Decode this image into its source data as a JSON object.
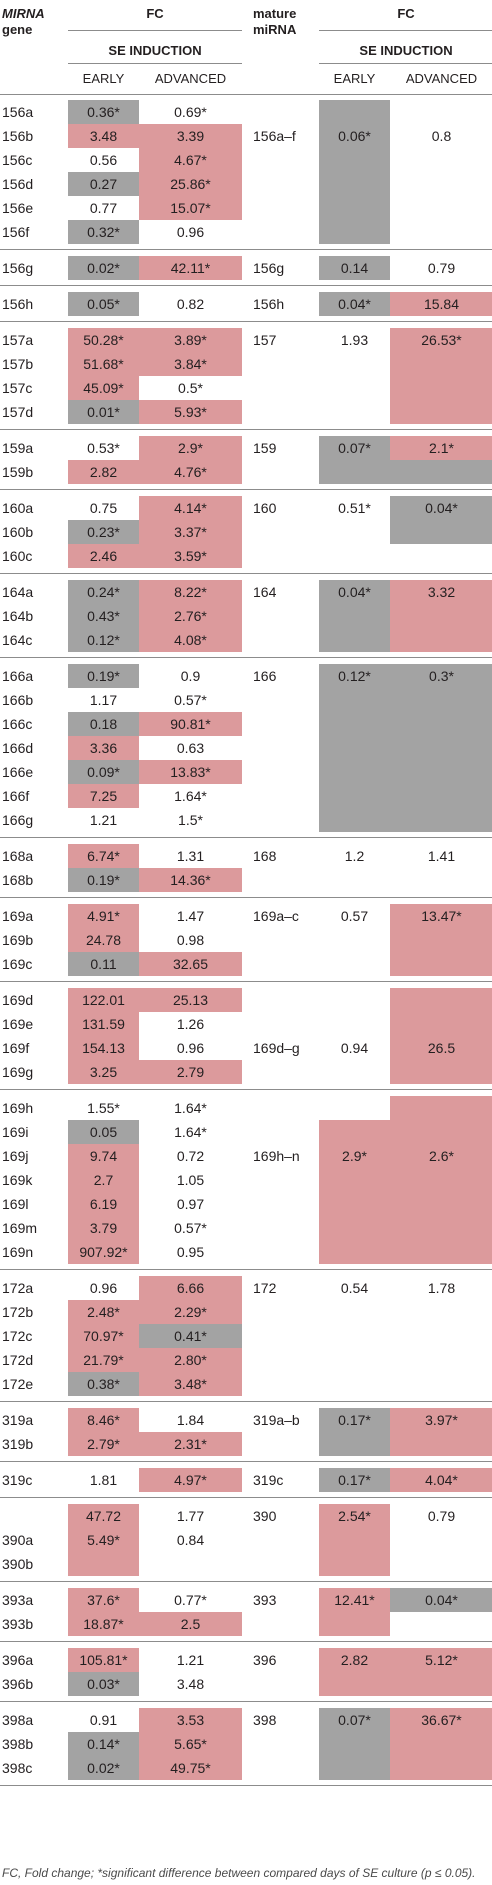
{
  "header": {
    "mirna_gene_1": "MIRNA",
    "mirna_gene_2": "gene",
    "fc_left": "FC",
    "mature_1": "mature",
    "mature_2": "miRNA",
    "fc_right": "FC",
    "se_left": "SE INDUCTION",
    "se_right": "SE INDUCTION",
    "early_left": "EARLY",
    "advanced_left": "ADVANCED",
    "early_right": "EARLY",
    "advanced_right": "ADVANCED"
  },
  "colors": {
    "up": "#dc9a9c",
    "down": "#a3a3a3"
  },
  "groups": [
    {
      "rows": [
        [
          "156a",
          "0.36*",
          "g",
          "0.69*",
          ""
        ],
        [
          "156b",
          "3.48",
          "r",
          "3.39",
          "r"
        ],
        [
          "156c",
          "0.56",
          "",
          "4.67*",
          "r"
        ],
        [
          "156d",
          "0.27",
          "g",
          "25.86*",
          "r"
        ],
        [
          "156e",
          "0.77",
          "",
          "15.07*",
          "r"
        ],
        [
          "156f",
          "0.32*",
          "g",
          "0.96",
          ""
        ]
      ],
      "mature": {
        "name": "156a–f",
        "early": "0.06*",
        "early_c": "g",
        "adv": "0.8",
        "adv_c": "",
        "label_row": 1
      }
    },
    {
      "rows": [
        [
          "156g",
          "0.02*",
          "g",
          "42.11*",
          "r"
        ]
      ],
      "mature": {
        "name": "156g",
        "early": "0.14",
        "early_c": "g",
        "adv": "0.79",
        "adv_c": "",
        "label_row": 0
      }
    },
    {
      "rows": [
        [
          "156h",
          "0.05*",
          "g",
          "0.82",
          ""
        ]
      ],
      "mature": {
        "name": "156h",
        "early": "0.04*",
        "early_c": "g",
        "adv": "15.84",
        "adv_c": "r",
        "label_row": 0
      }
    },
    {
      "rows": [
        [
          "157a",
          "50.28*",
          "r",
          "3.89*",
          "r"
        ],
        [
          "157b",
          "51.68*",
          "r",
          "3.84*",
          "r"
        ],
        [
          "157c",
          "45.09*",
          "r",
          "0.5*",
          ""
        ],
        [
          "157d",
          "0.01*",
          "g",
          "5.93*",
          "r"
        ]
      ],
      "mature": {
        "name": "157",
        "early": "1.93",
        "early_c": "",
        "adv": "26.53*",
        "adv_c": "r",
        "label_row": 0
      }
    },
    {
      "rows": [
        [
          "159a",
          "0.53*",
          "",
          "2.9*",
          "r"
        ],
        [
          "159b",
          "2.82",
          "r",
          "4.76*",
          "r"
        ]
      ],
      "mature": {
        "name": "159",
        "early": "0.07*",
        "early_c": "g",
        "adv": "2.1*",
        "adv_c": "r",
        "label_row": 0,
        "adv_span": 1,
        "adv_rest_c": "g"
      }
    },
    {
      "rows": [
        [
          "160a",
          "0.75",
          "",
          "4.14*",
          "r"
        ],
        [
          "160b",
          "0.23*",
          "g",
          "3.37*",
          "r"
        ],
        [
          "160c",
          "2.46",
          "r",
          "3.59*",
          "r"
        ]
      ],
      "mature": {
        "name": "160",
        "early": "0.51*",
        "early_c": "",
        "adv": "0.04*",
        "adv_c": "g",
        "label_row": 0,
        "adv_span": 2
      }
    },
    {
      "rows": [
        [
          "164a",
          "0.24*",
          "g",
          "8.22*",
          "r"
        ],
        [
          "164b",
          "0.43*",
          "g",
          "2.76*",
          "r"
        ],
        [
          "164c",
          "0.12*",
          "g",
          "4.08*",
          "r"
        ]
      ],
      "mature": {
        "name": "164",
        "early": "0.04*",
        "early_c": "g",
        "adv": "3.32",
        "adv_c": "r",
        "label_row": 0
      }
    },
    {
      "rows": [
        [
          "166a",
          "0.19*",
          "g",
          "0.9",
          ""
        ],
        [
          "166b",
          "1.17",
          "",
          "0.57*",
          ""
        ],
        [
          "166c",
          "0.18",
          "g",
          "90.81*",
          "r"
        ],
        [
          "166d",
          "3.36",
          "r",
          "0.63",
          ""
        ],
        [
          "166e",
          "0.09*",
          "g",
          "13.83*",
          "r"
        ],
        [
          "166f",
          "7.25",
          "r",
          "1.64*",
          ""
        ],
        [
          "166g",
          "1.21",
          "",
          "1.5*",
          ""
        ]
      ],
      "mature": {
        "name": "166",
        "early": "0.12*",
        "early_c": "g",
        "adv": "0.3*",
        "adv_c": "g",
        "label_row": 0
      }
    },
    {
      "rows": [
        [
          "168a",
          "6.74*",
          "r",
          "1.31",
          ""
        ],
        [
          "168b",
          "0.19*",
          "g",
          "14.36*",
          "r"
        ]
      ],
      "mature": {
        "name": "168",
        "early": "1.2",
        "early_c": "",
        "adv": "1.41",
        "adv_c": "",
        "label_row": 0
      }
    },
    {
      "rows": [
        [
          "169a",
          "4.91*",
          "r",
          "1.47",
          ""
        ],
        [
          "169b",
          "24.78",
          "r",
          "0.98",
          ""
        ],
        [
          "169c",
          "0.11",
          "g",
          "32.65",
          "r"
        ]
      ],
      "mature": {
        "name": "169a–c",
        "early": "0.57",
        "early_c": "",
        "adv": "13.47*",
        "adv_c": "r",
        "label_row": 0
      }
    },
    {
      "rows": [
        [
          "169d",
          "122.01",
          "r",
          "25.13",
          "r"
        ],
        [
          "169e",
          "131.59",
          "r",
          "1.26",
          ""
        ],
        [
          "169f",
          "154.13",
          "r",
          "0.96",
          ""
        ],
        [
          "169g",
          "3.25",
          "r",
          "2.79",
          "r"
        ]
      ],
      "mature": {
        "name": "169d–g",
        "early": "0.94",
        "early_c": "",
        "adv": "26.5",
        "adv_c": "r",
        "label_row": 2
      }
    },
    {
      "rows": [
        [
          "169h",
          "1.55*",
          "",
          "1.64*",
          ""
        ],
        [
          "169i",
          "0.05",
          "g",
          "1.64*",
          ""
        ],
        [
          "169j",
          "9.74",
          "r",
          "0.72",
          ""
        ],
        [
          "169k",
          "2.7",
          "r",
          "1.05",
          ""
        ],
        [
          "169l",
          "6.19",
          "r",
          "0.97",
          ""
        ],
        [
          "169m",
          "3.79",
          "r",
          "0.57*",
          ""
        ],
        [
          "169n",
          "907.92*",
          "r",
          "0.95",
          ""
        ]
      ],
      "mature": {
        "name": "169h–n",
        "early": "2.9*",
        "early_c": "r",
        "early_start": 1,
        "adv": "2.6*",
        "adv_c": "r",
        "label_row": 2
      }
    },
    {
      "rows": [
        [
          "172a",
          "0.96",
          "",
          "6.66",
          "r"
        ],
        [
          "172b",
          "2.48*",
          "r",
          "2.29*",
          "r"
        ],
        [
          "172c",
          "70.97*",
          "r",
          "0.41*",
          "g"
        ],
        [
          "172d",
          "21.79*",
          "r",
          "2.80*",
          "r"
        ],
        [
          "172e",
          "0.38*",
          "g",
          "3.48*",
          "r"
        ]
      ],
      "mature": {
        "name": "172",
        "early": "0.54",
        "early_c": "",
        "adv": "1.78",
        "adv_c": "",
        "label_row": 0
      }
    },
    {
      "rows": [
        [
          "319a",
          "8.46*",
          "r",
          "1.84",
          ""
        ],
        [
          "319b",
          "2.79*",
          "r",
          "2.31*",
          "r"
        ]
      ],
      "mature": {
        "name": "319a–b",
        "early": "0.17*",
        "early_c": "g",
        "adv": "3.97*",
        "adv_c": "r",
        "label_row": 0
      }
    },
    {
      "rows": [
        [
          "319c",
          "1.81",
          "",
          "4.97*",
          "r"
        ]
      ],
      "mature": {
        "name": "319c",
        "early": "0.17*",
        "early_c": "g",
        "adv": "4.04*",
        "adv_c": "r",
        "label_row": 0
      }
    },
    {
      "rows": [
        [
          "",
          "47.72",
          "r",
          "1.77",
          ""
        ],
        [
          "390a",
          "5.49*",
          "r",
          "0.84",
          ""
        ],
        [
          "390b",
          "",
          "r",
          "",
          ""
        ]
      ],
      "mature": {
        "name": "390",
        "early": "2.54*",
        "early_c": "r",
        "adv": "0.79",
        "adv_c": "",
        "label_row": 0
      }
    },
    {
      "rows": [
        [
          "393a",
          "37.6*",
          "r",
          "0.77*",
          ""
        ],
        [
          "393b",
          "18.87*",
          "r",
          "2.5",
          "r"
        ]
      ],
      "mature": {
        "name": "393",
        "early": "12.41*",
        "early_c": "r",
        "adv": "0.04*",
        "adv_c": "g",
        "label_row": 0,
        "adv_span": 1
      }
    },
    {
      "rows": [
        [
          "396a",
          "105.81*",
          "r",
          "1.21",
          ""
        ],
        [
          "396b",
          "0.03*",
          "g",
          "3.48",
          ""
        ]
      ],
      "mature": {
        "name": "396",
        "early": "2.82",
        "early_c": "r",
        "adv": "5.12*",
        "adv_c": "r",
        "label_row": 0
      }
    },
    {
      "rows": [
        [
          "398a",
          "0.91",
          "",
          "3.53",
          "r"
        ],
        [
          "398b",
          "0.14*",
          "g",
          "5.65*",
          "r"
        ],
        [
          "398c",
          "0.02*",
          "g",
          "49.75*",
          "r"
        ]
      ],
      "mature": {
        "name": "398",
        "early": "0.07*",
        "early_c": "g",
        "adv": "36.67*",
        "adv_c": "r",
        "label_row": 0
      }
    }
  ],
  "footnote": "FC, Fold change; *significant difference between compared days of SE culture (p ≤ 0.05)."
}
